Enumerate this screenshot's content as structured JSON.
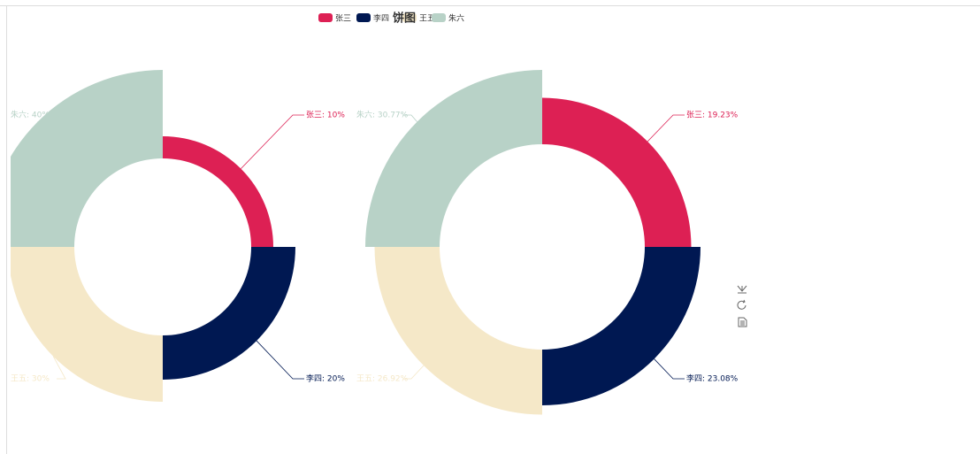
{
  "chart_data": [
    {
      "type": "pie",
      "title": "饼图",
      "rose": true,
      "categories": [
        "张三",
        "李四",
        "王五",
        "朱六"
      ],
      "colors": [
        "#dd2054",
        "#001852",
        "#f5e8c8",
        "#b8d2c7"
      ],
      "values": [
        10,
        20,
        30,
        40
      ],
      "value_labels": [
        "张三: 10%",
        "李四: 20%",
        "王五: 30%",
        "朱六: 40%"
      ]
    },
    {
      "type": "pie",
      "rose": true,
      "categories": [
        "张三",
        "李四",
        "王五",
        "朱六"
      ],
      "colors": [
        "#dd2054",
        "#001852",
        "#f5e8c8",
        "#b8d2c7"
      ],
      "values": [
        19.23,
        23.08,
        26.92,
        30.77
      ],
      "value_labels": [
        "张三: 19.23%",
        "李四: 23.08%",
        "王五: 26.92%",
        "朱六: 30.77%"
      ]
    }
  ]
}
